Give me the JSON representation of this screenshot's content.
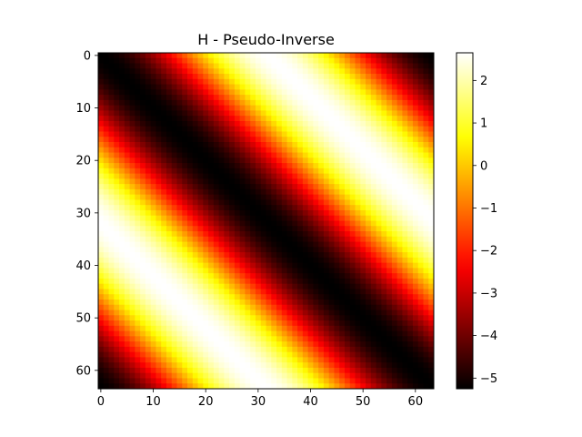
{
  "chart_data": {
    "type": "heatmap",
    "title": "H - Pseudo-Inverse",
    "xlabel": "",
    "ylabel": "",
    "size": 64,
    "colormap": "hot",
    "value_function": "circulant: v(i,j) = vmin + (vmax - vmin) * sin^2(pi * |i - j| / 64)",
    "vmin": -5.25,
    "vmax": 2.65,
    "x_ticks": [
      0,
      10,
      20,
      30,
      40,
      50,
      60
    ],
    "y_ticks": [
      0,
      10,
      20,
      30,
      40,
      50,
      60
    ],
    "x_tick_labels": [
      "0",
      "10",
      "20",
      "30",
      "40",
      "50",
      "60"
    ],
    "y_tick_labels": [
      "0",
      "10",
      "20",
      "30",
      "40",
      "50",
      "60"
    ],
    "colorbar": {
      "ticks": [
        2,
        1,
        0,
        -1,
        -2,
        -3,
        -4,
        -5
      ],
      "tick_labels": [
        "2",
        "1",
        "0",
        "−1",
        "−2",
        "−3",
        "−4",
        "−5"
      ],
      "colors": [
        "#000000",
        "#ff0000",
        "#ffff00",
        "#ffffff"
      ]
    },
    "grid": false,
    "legend": "none"
  }
}
